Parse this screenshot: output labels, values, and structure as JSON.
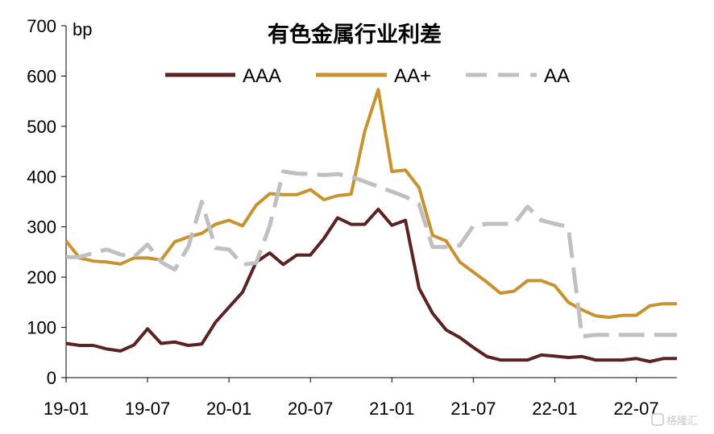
{
  "chart_data": {
    "type": "line",
    "title": "有色金属行业利差",
    "ylabel": "bp",
    "xlabel": "",
    "ylim": [
      0,
      700
    ],
    "yticks": [
      0,
      100,
      200,
      300,
      400,
      500,
      600,
      700
    ],
    "xtick_labels": [
      "19-01",
      "19-07",
      "20-01",
      "20-07",
      "21-01",
      "21-07",
      "22-01",
      "22-07"
    ],
    "x": [
      "19-01",
      "19-02",
      "19-03",
      "19-04",
      "19-05",
      "19-06",
      "19-07",
      "19-08",
      "19-09",
      "19-10",
      "19-11",
      "19-12",
      "20-01",
      "20-02",
      "20-03",
      "20-04",
      "20-05",
      "20-06",
      "20-07",
      "20-08",
      "20-09",
      "20-10",
      "20-11",
      "20-12",
      "21-01",
      "21-02",
      "21-03",
      "21-04",
      "21-05",
      "21-06",
      "21-07",
      "21-08",
      "21-09",
      "21-10",
      "21-11",
      "21-12",
      "22-01",
      "22-02",
      "22-03",
      "22-04",
      "22-05",
      "22-06",
      "22-07",
      "22-08",
      "22-09",
      "22-10"
    ],
    "legend_position": "top",
    "grid": false,
    "series": [
      {
        "name": "AAA",
        "color": "#5c2222",
        "style": "solid",
        "values": [
          68,
          64,
          64,
          57,
          53,
          65,
          97,
          68,
          71,
          64,
          67,
          110,
          140,
          170,
          230,
          248,
          225,
          244,
          244,
          277,
          318,
          305,
          305,
          335,
          303,
          313,
          178,
          128,
          95,
          80,
          60,
          42,
          35,
          35,
          35,
          45,
          43,
          40,
          42,
          35,
          35,
          35,
          38,
          32,
          38,
          38
        ]
      },
      {
        "name": "AA+",
        "color": "#c8922e",
        "style": "solid",
        "values": [
          272,
          238,
          232,
          230,
          226,
          238,
          238,
          234,
          270,
          280,
          287,
          305,
          313,
          302,
          343,
          366,
          364,
          364,
          374,
          354,
          362,
          365,
          490,
          573,
          410,
          413,
          378,
          283,
          272,
          230,
          210,
          190,
          168,
          172,
          193,
          193,
          183,
          150,
          135,
          123,
          120,
          124,
          124,
          143,
          147,
          147
        ]
      },
      {
        "name": "AA",
        "color": "#c0c0c0",
        "style": "dashed",
        "values": [
          240,
          240,
          248,
          255,
          245,
          240,
          265,
          230,
          215,
          260,
          350,
          258,
          255,
          225,
          228,
          302,
          410,
          406,
          405,
          403,
          405,
          400,
          390,
          380,
          370,
          360,
          345,
          260,
          260,
          263,
          302,
          306,
          306,
          306,
          340,
          313,
          306,
          300,
          82,
          85,
          85,
          85,
          85,
          85,
          85,
          85
        ]
      }
    ]
  },
  "watermark": "格隆汇"
}
